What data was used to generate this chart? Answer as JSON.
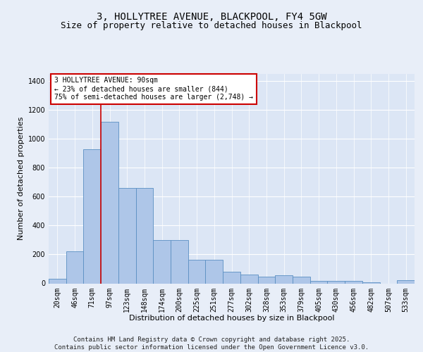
{
  "title_line1": "3, HOLLYTREE AVENUE, BLACKPOOL, FY4 5GW",
  "title_line2": "Size of property relative to detached houses in Blackpool",
  "xlabel": "Distribution of detached houses by size in Blackpool",
  "ylabel": "Number of detached properties",
  "footer": "Contains HM Land Registry data © Crown copyright and database right 2025.\nContains public sector information licensed under the Open Government Licence v3.0.",
  "categories": [
    "20sqm",
    "46sqm",
    "71sqm",
    "97sqm",
    "123sqm",
    "148sqm",
    "174sqm",
    "200sqm",
    "225sqm",
    "251sqm",
    "277sqm",
    "302sqm",
    "328sqm",
    "353sqm",
    "379sqm",
    "405sqm",
    "430sqm",
    "456sqm",
    "482sqm",
    "507sqm",
    "533sqm"
  ],
  "values": [
    30,
    220,
    930,
    1120,
    660,
    660,
    300,
    300,
    165,
    165,
    80,
    60,
    45,
    55,
    45,
    15,
    15,
    15,
    5,
    0,
    20
  ],
  "bar_color": "#aec6e8",
  "bar_edge_color": "#5a8fc2",
  "vline_color": "#cc0000",
  "annotation_text": "3 HOLLYTREE AVENUE: 90sqm\n← 23% of detached houses are smaller (844)\n75% of semi-detached houses are larger (2,748) →",
  "annotation_box_color": "#ffffff",
  "annotation_box_edge": "#cc0000",
  "ylim": [
    0,
    1450
  ],
  "yticks": [
    0,
    200,
    400,
    600,
    800,
    1000,
    1200,
    1400
  ],
  "background_color": "#e8eef8",
  "plot_background": "#dce6f5",
  "grid_color": "#ffffff",
  "title_fontsize": 10,
  "subtitle_fontsize": 9,
  "axis_label_fontsize": 8,
  "tick_fontsize": 7,
  "annotation_fontsize": 7,
  "footer_fontsize": 6.5
}
